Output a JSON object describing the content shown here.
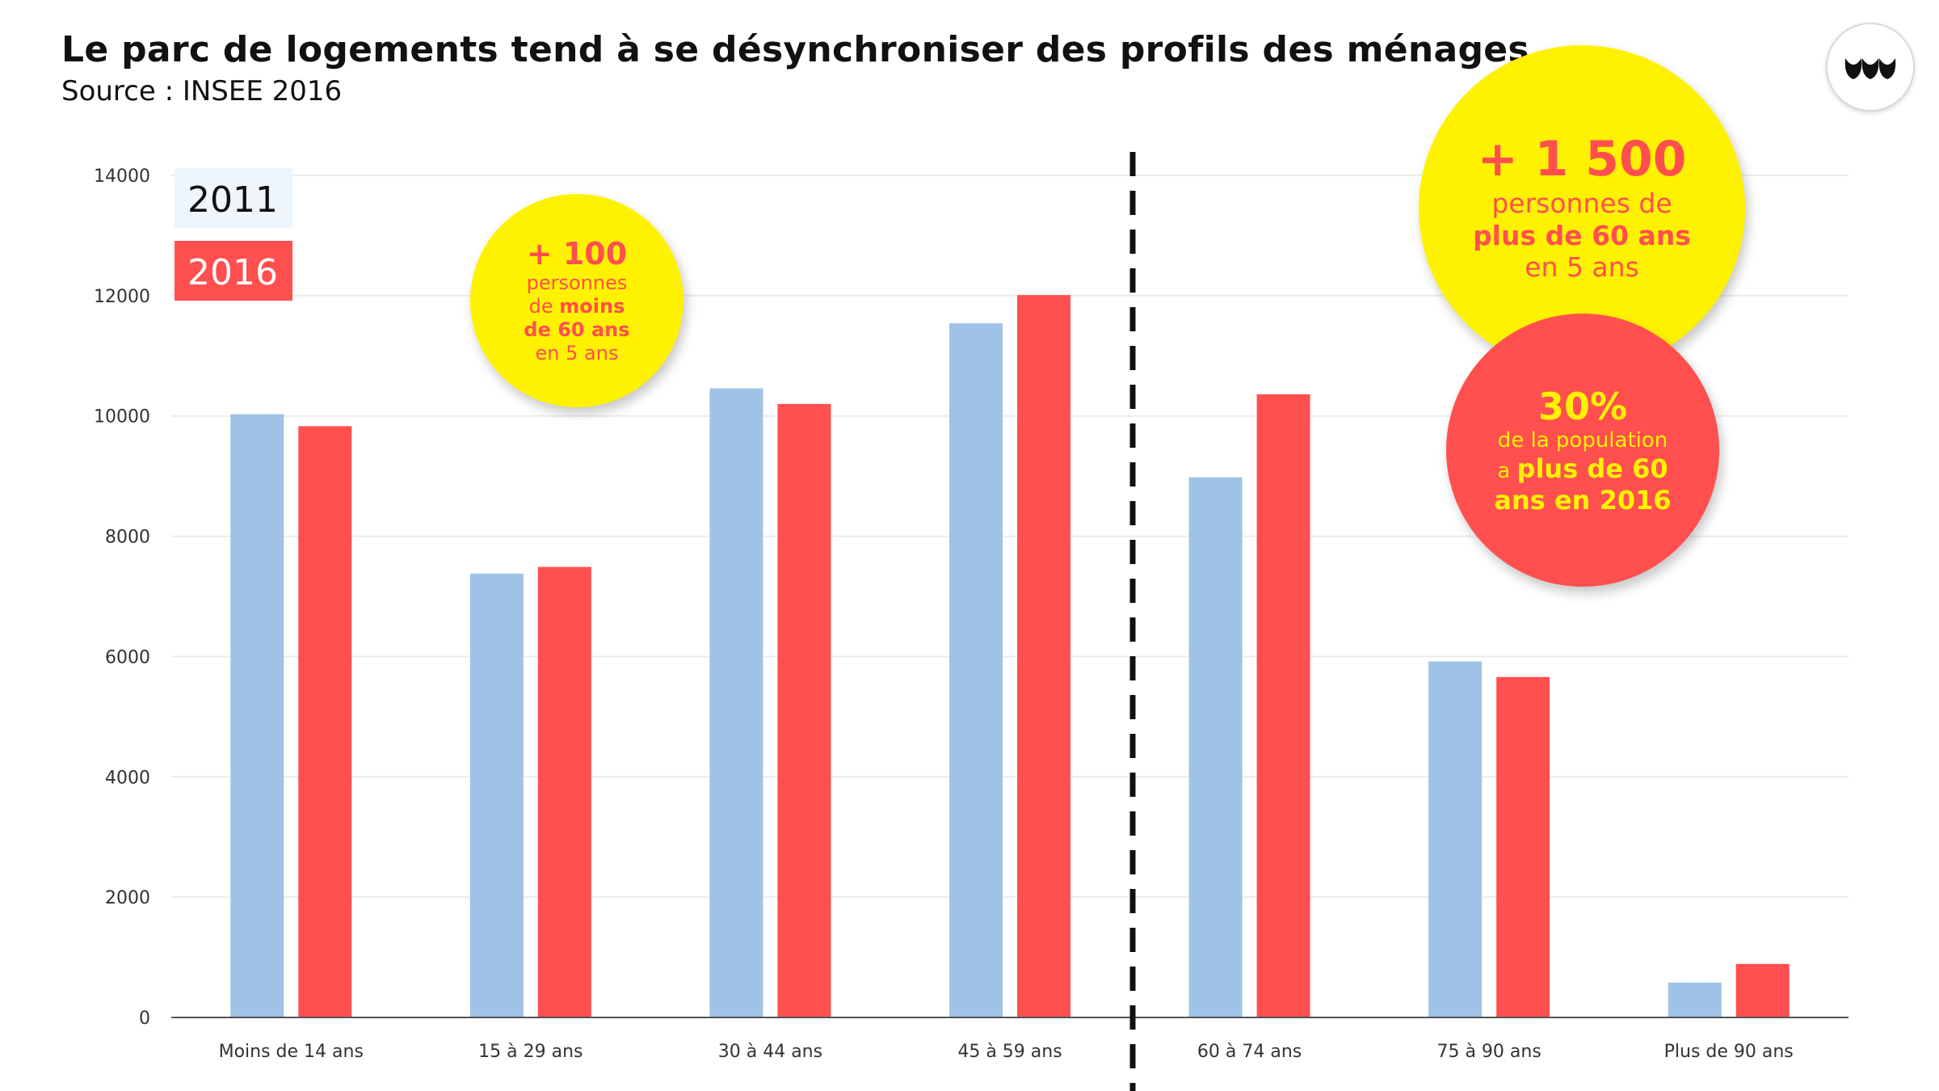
{
  "header": {
    "title": "Le parc de logements tend à se désynchroniser des profils des ménages",
    "subtitle": "Source : INSEE 2016"
  },
  "logo": {
    "icon": "leaf-logo-icon"
  },
  "colors": {
    "series_2011": "#9fc3e6",
    "series_2016": "#ff4f4f",
    "bubble_yellow": "#fff200",
    "bubble_red": "#ff4f4f"
  },
  "chart_data": {
    "type": "bar",
    "title": "Le parc de logements tend à se désynchroniser des profils des ménages",
    "subtitle": "Source : INSEE 2016",
    "xlabel": "",
    "ylabel": "",
    "ylim": [
      0,
      14000
    ],
    "yticks": [
      0,
      2000,
      4000,
      6000,
      8000,
      10000,
      12000,
      14000
    ],
    "grid": true,
    "legend_position": "top-left",
    "categories": [
      "Moins de 14 ans",
      "15 à 29 ans",
      "30 à 44 ans",
      "45 à 59 ans",
      "60 à 74 ans",
      "75 à 90 ans",
      "Plus de 90 ans"
    ],
    "series": [
      {
        "name": "2011",
        "color": "#9fc3e6",
        "values": [
          10030,
          7380,
          10460,
          11540,
          8980,
          5920,
          580
        ]
      },
      {
        "name": "2016",
        "color": "#ff4f4f",
        "values": [
          9830,
          7490,
          10200,
          12010,
          10360,
          5660,
          890
        ]
      }
    ],
    "divider_after_category_index": 3
  },
  "annotations": {
    "under60": {
      "headline": "+ 100",
      "line1": "personnes",
      "line2_prefix": "de ",
      "line2_bold": "moins",
      "line3": "de 60 ans",
      "line4": "en 5 ans"
    },
    "over60": {
      "headline": "+ 1 500",
      "line1": "personnes de",
      "line2": "plus de 60 ans",
      "line3": "en 5 ans"
    },
    "share": {
      "headline": "30%",
      "line1": "de la population",
      "line2_prefix": "a ",
      "line2_bold": "plus de 60",
      "line3": "ans en 2016"
    }
  }
}
